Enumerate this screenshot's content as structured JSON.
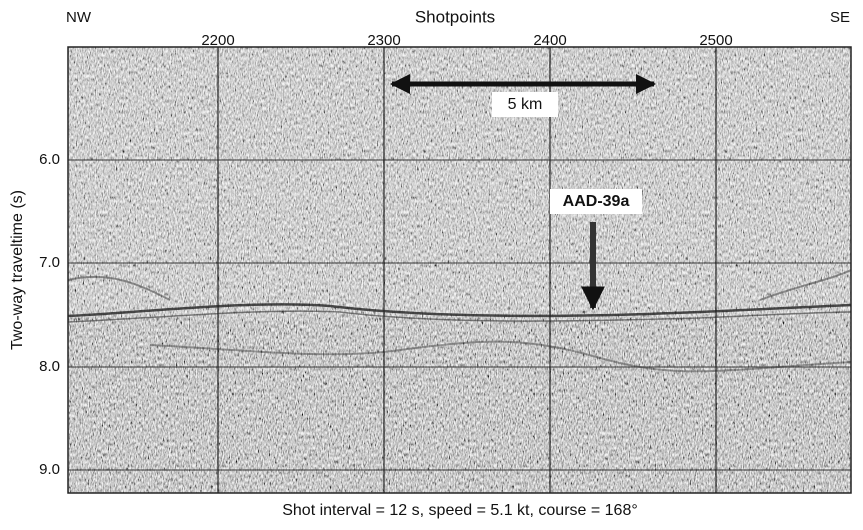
{
  "header": {
    "left": "NW",
    "title": "Shotpoints",
    "right": "SE"
  },
  "x_axis": {
    "ticks": [
      "2200",
      "2300",
      "2400",
      "2500"
    ]
  },
  "y_axis": {
    "label": "Two-way traveltime (s)",
    "ticks": [
      "6.0",
      "7.0",
      "8.0",
      "9.0"
    ]
  },
  "annotations": {
    "scale": "5 km",
    "site": "AAD-39a"
  },
  "caption": "Shot interval = 12 s, speed = 5.1 kt, course = 168°"
}
